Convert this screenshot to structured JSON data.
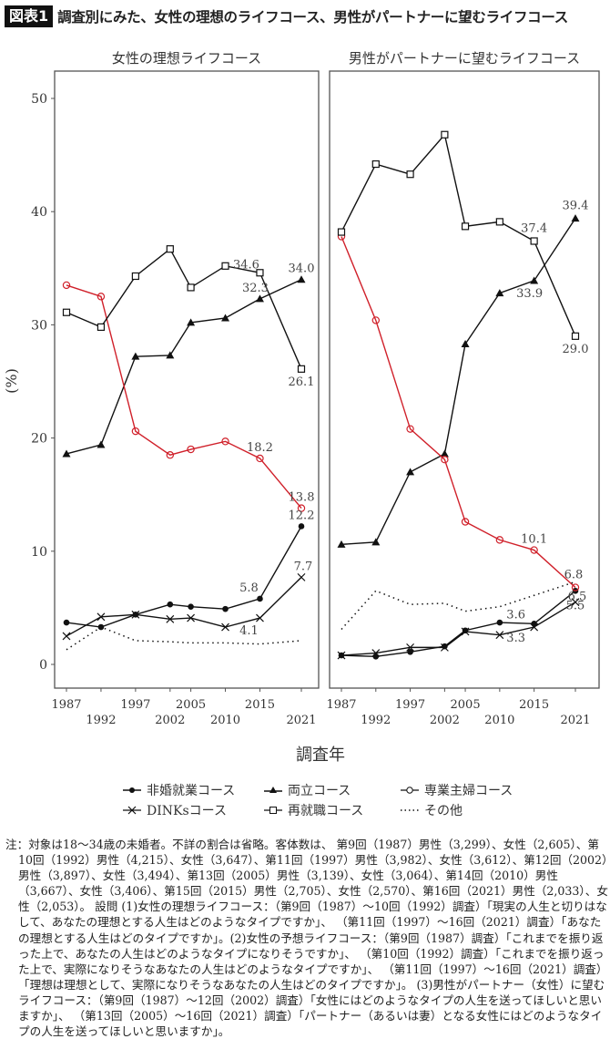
{
  "header": {
    "badge": "図表1",
    "title": "調査別にみた、女性の理想のライフコース、男性がパートナーに望むライフコース"
  },
  "colors": {
    "highlight": "#d0202a",
    "ink": "#111111",
    "frame": "#555555"
  },
  "chart_data": [
    {
      "type": "line",
      "title": "女性の理想ライフコース",
      "xlabel": "調査年",
      "ylabel": "(%)",
      "ylim": [
        0,
        50
      ],
      "yticks": [
        0,
        10,
        20,
        30,
        40,
        50
      ],
      "x": [
        "1987",
        "1992",
        "1997",
        "2002",
        "2005",
        "2010",
        "2015",
        "2021"
      ],
      "grid": false,
      "series": [
        {
          "name": "非婚就業コース",
          "marker": "dot",
          "values": [
            3.7,
            3.3,
            4.4,
            5.3,
            5.1,
            4.9,
            5.8,
            12.2
          ]
        },
        {
          "name": "両立コース",
          "marker": "triangle",
          "values": [
            18.6,
            19.4,
            27.2,
            27.3,
            30.2,
            30.6,
            32.3,
            34.0
          ]
        },
        {
          "name": "専業主婦コース",
          "marker": "circle",
          "color": "#d0202a",
          "values": [
            33.5,
            32.5,
            20.6,
            18.5,
            19.0,
            19.7,
            18.2,
            13.8
          ]
        },
        {
          "name": "DINKsコース",
          "marker": "x",
          "values": [
            2.5,
            4.2,
            4.4,
            4.0,
            4.1,
            3.3,
            4.1,
            7.7
          ]
        },
        {
          "name": "再就職コース",
          "marker": "square",
          "values": [
            31.1,
            29.8,
            34.3,
            36.7,
            33.3,
            35.2,
            34.6,
            26.1
          ]
        },
        {
          "name": "その他",
          "marker": "none",
          "dotted": true,
          "values": [
            1.3,
            3.3,
            2.1,
            2.0,
            1.9,
            1.9,
            1.8,
            2.1
          ]
        }
      ],
      "labels": [
        {
          "series": 4,
          "index": 6,
          "text": "34.6"
        },
        {
          "series": 1,
          "index": 7,
          "text": "34.0"
        },
        {
          "series": 1,
          "index": 6,
          "text": "32.3"
        },
        {
          "series": 4,
          "index": 7,
          "text": "26.1"
        },
        {
          "series": 2,
          "index": 6,
          "text": "18.2"
        },
        {
          "series": 2,
          "index": 7,
          "text": "13.8"
        },
        {
          "series": 0,
          "index": 7,
          "text": "12.2"
        },
        {
          "series": 0,
          "index": 6,
          "text": "5.8"
        },
        {
          "series": 3,
          "index": 6,
          "text": "4.1"
        },
        {
          "series": 3,
          "index": 7,
          "text": "7.7"
        }
      ]
    },
    {
      "type": "line",
      "title": "男性がパートナーに望むライフコース",
      "xlabel": "調査年",
      "ylim": [
        0,
        50
      ],
      "x": [
        "1987",
        "1992",
        "1997",
        "2002",
        "2005",
        "2010",
        "2015",
        "2021"
      ],
      "grid": false,
      "series": [
        {
          "name": "非婚就業コース",
          "marker": "dot",
          "values": [
            0.8,
            0.7,
            1.1,
            1.6,
            3.0,
            3.7,
            3.6,
            6.5
          ]
        },
        {
          "name": "両立コース",
          "marker": "triangle",
          "values": [
            10.6,
            10.8,
            17.0,
            18.6,
            28.3,
            32.8,
            33.9,
            39.4
          ]
        },
        {
          "name": "専業主婦コース",
          "marker": "circle",
          "color": "#d0202a",
          "values": [
            37.8,
            30.4,
            20.8,
            18.1,
            12.6,
            11.0,
            10.1,
            6.8
          ]
        },
        {
          "name": "DINKsコース",
          "marker": "x",
          "values": [
            0.8,
            1.0,
            1.5,
            1.5,
            2.9,
            2.6,
            3.3,
            5.5
          ]
        },
        {
          "name": "再就職コース",
          "marker": "square",
          "values": [
            38.2,
            44.2,
            43.3,
            46.8,
            38.7,
            39.1,
            37.4,
            29.0
          ]
        },
        {
          "name": "その他",
          "marker": "none",
          "dotted": true,
          "values": [
            3.1,
            6.5,
            5.3,
            5.4,
            4.7,
            5.1,
            6.1,
            7.3
          ]
        }
      ],
      "labels": [
        {
          "series": 4,
          "index": 6,
          "text": "37.4"
        },
        {
          "series": 1,
          "index": 7,
          "text": "39.4"
        },
        {
          "series": 1,
          "index": 6,
          "text": "33.9"
        },
        {
          "series": 4,
          "index": 7,
          "text": "29.0"
        },
        {
          "series": 2,
          "index": 6,
          "text": "10.1"
        },
        {
          "series": 2,
          "index": 7,
          "text": "6.8"
        },
        {
          "series": 0,
          "index": 7,
          "text": "6.5"
        },
        {
          "series": 3,
          "index": 7,
          "text": "5.5"
        },
        {
          "series": 0,
          "index": 6,
          "text": "3.6"
        },
        {
          "series": 3,
          "index": 6,
          "text": "3.3"
        }
      ]
    }
  ],
  "legend": {
    "items": [
      "非婚就業コース",
      "両立コース",
      "専業主婦コース",
      "DINKsコース",
      "再就職コース",
      "その他"
    ]
  },
  "notes": "注：対象は18〜34歳の未婚者。不詳の割合は省略。客体数は、 第9回（1987）男性（3,299）、女性（2,605）、第10回（1992）男性（4,215）、女性（3,647）、第11回（1997）男性（3,982）、女性（3,612）、第12回（2002）男性（3,897）、女性（3,494）、第13回（2005）男性（3,139）、女性（3,064）、第14回（2010）男性（3,667）、女性（3,406）、第15回（2015）男性（2,705）、女性（2,570）、第16回（2021）男性（2,033）、女性（2,053）。 設問 (1)女性の理想ライフコース：（第9回（1987）〜10回（1992）調査）「現実の人生と切りはなして、あなたの理想とする人生はどのようなタイプですか」、 （第11回（1997）〜16回（2021）調査）「あなたの理想とする人生はどのタイプですか」。(2)女性の予想ライフコース：（第9回（1987）調査）「これまでを振り返った上で、あなたの人生はどのようなタイプになりそうですか」、 （第10回（1992）調査）「これまでを振り返った上で、実際になりそうなあなたの人生はどのようなタイプですか」、 （第11回（1997）〜16回（2021）調査）「理想は理想として、実際になりそうなあなたの人生はどのタイプですか」。 (3)男性がパートナー（女性）に望むライフコース：（第9回（1987）〜12回（2002）調査）「女性にはどのようなタイプの人生を送ってほしいと思いますか」、 （第13回（2005）〜16回（2021）調査）「パートナー（あるいは妻）となる女性にはどのようなタイプの人生を送ってほしいと思いますか」。"
}
